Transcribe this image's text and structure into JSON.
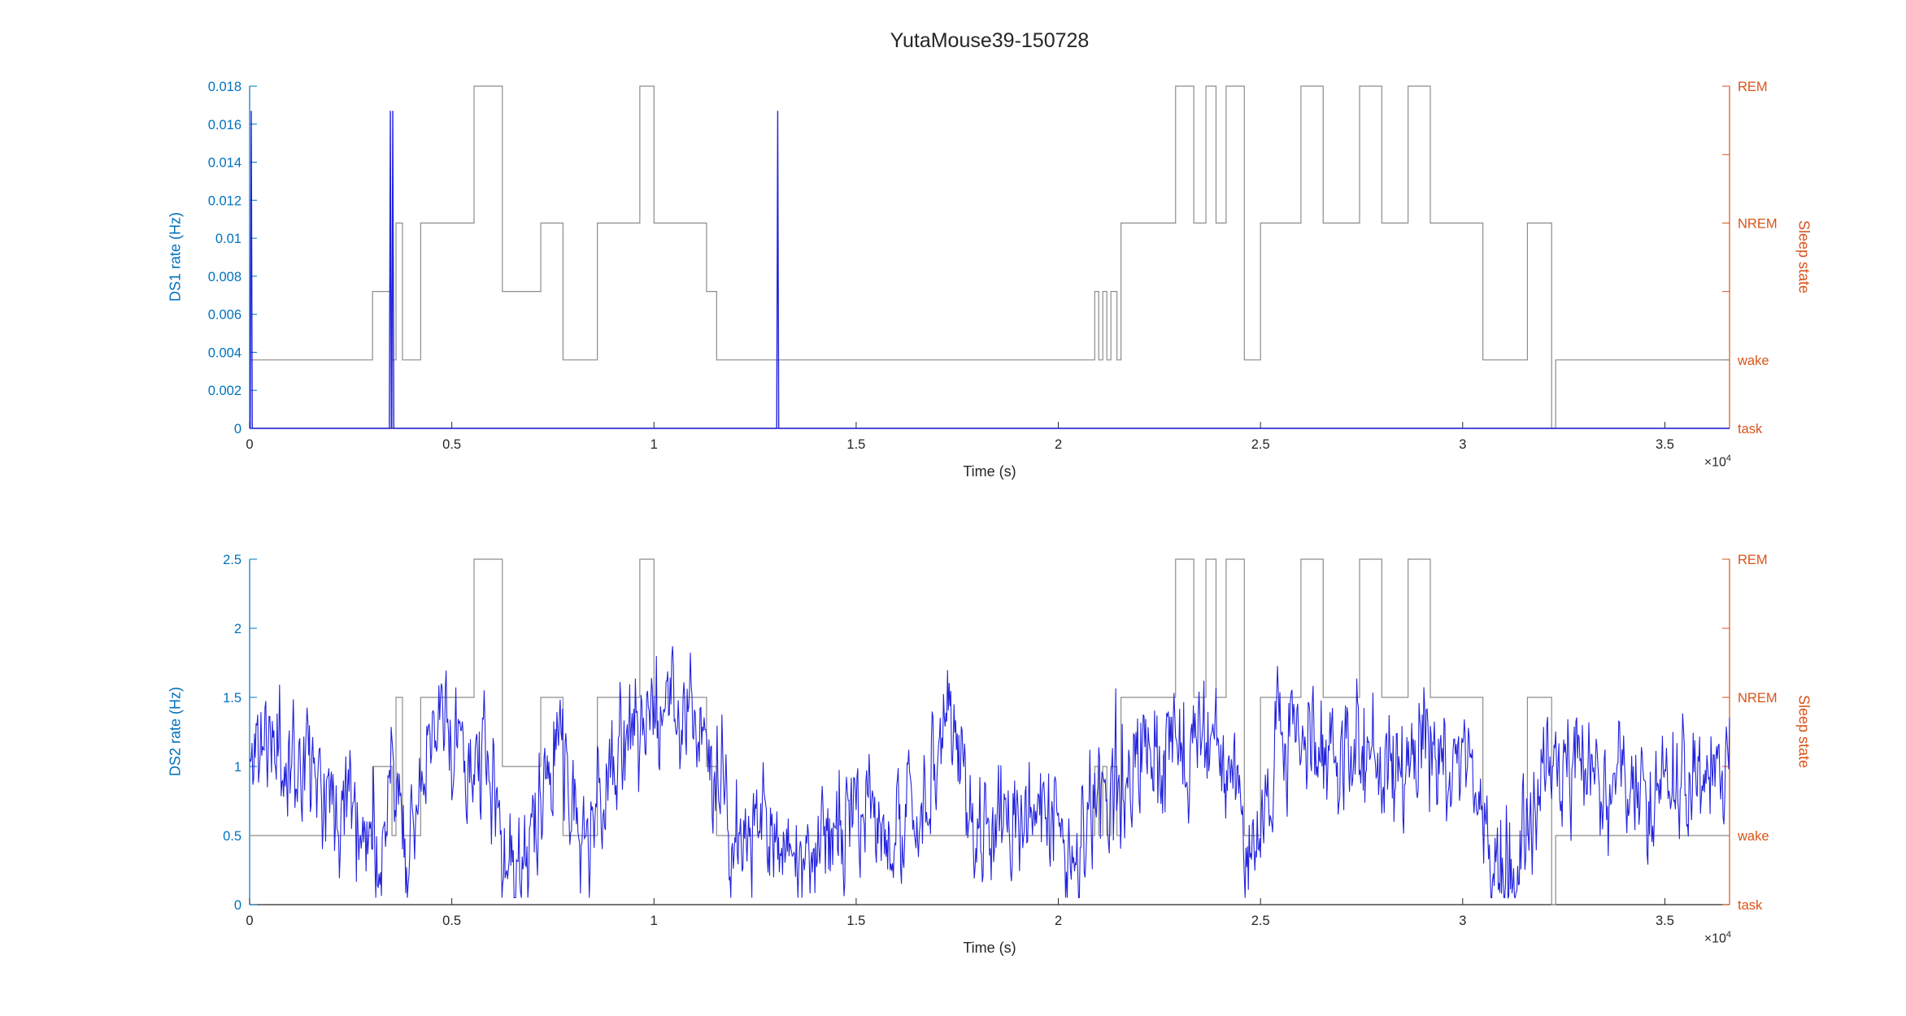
{
  "title": "YutaMouse39-150728",
  "top_plot": {
    "y_label": "DS1 rate (Hz)"
  },
  "bottom_plot": {
    "y_label": "DS2 rate (Hz)"
  },
  "x_axis": {
    "label": "Time (s)",
    "exponent_base": "×10",
    "exponent_power": "4"
  },
  "right_axis": {
    "label": "Sleep state"
  },
  "colors": {
    "left_axis": "#0072BD",
    "right_axis": "#D95319",
    "axis_dark": "#262626",
    "line_blue": "#2323dd",
    "sleep_gray": "#8c8c8c",
    "background": "#ffffff"
  },
  "sleep_state_levels": {
    "task": 0,
    "wake": 1,
    "NREM": 3,
    "REM": 5
  },
  "sleep_state_epochs": [
    [
      0,
      3040,
      1
    ],
    [
      3040,
      3520,
      2
    ],
    [
      3520,
      3620,
      1
    ],
    [
      3620,
      3780,
      3
    ],
    [
      3780,
      4230,
      1
    ],
    [
      4230,
      5550,
      3
    ],
    [
      5550,
      6250,
      5
    ],
    [
      6250,
      7200,
      2
    ],
    [
      7200,
      7750,
      3
    ],
    [
      7750,
      8600,
      1
    ],
    [
      8600,
      9650,
      3
    ],
    [
      9650,
      10000,
      5
    ],
    [
      10000,
      11300,
      3
    ],
    [
      11300,
      11550,
      2
    ],
    [
      11550,
      20900,
      1
    ],
    [
      20900,
      21000,
      2
    ],
    [
      21000,
      21100,
      1
    ],
    [
      21100,
      21200,
      2
    ],
    [
      21200,
      21300,
      1
    ],
    [
      21300,
      21450,
      2
    ],
    [
      21450,
      21550,
      1
    ],
    [
      21550,
      22900,
      3
    ],
    [
      22900,
      23350,
      5
    ],
    [
      23350,
      23650,
      3
    ],
    [
      23650,
      23900,
      5
    ],
    [
      23900,
      24150,
      3
    ],
    [
      24150,
      24600,
      5
    ],
    [
      24600,
      25000,
      1
    ],
    [
      25000,
      26000,
      3
    ],
    [
      26000,
      26550,
      5
    ],
    [
      26550,
      27450,
      3
    ],
    [
      27450,
      28000,
      5
    ],
    [
      28000,
      28650,
      3
    ],
    [
      28650,
      29200,
      5
    ],
    [
      29200,
      30500,
      3
    ],
    [
      30500,
      31600,
      1
    ],
    [
      31600,
      32200,
      3
    ],
    [
      32200,
      32300,
      0
    ],
    [
      32300,
      36600,
      1
    ]
  ],
  "chart_data": [
    {
      "type": "line",
      "title": "YutaMouse39-150728",
      "xlabel": "Time (s)",
      "ylabel": "DS1 rate (Hz)",
      "y2label": "Sleep state",
      "xlim": [
        0,
        36600
      ],
      "ylim": [
        0,
        0.018
      ],
      "x_scale_exponent": 4,
      "grid": false,
      "x_ticks": {
        "values": [
          0,
          5000,
          10000,
          15000,
          20000,
          25000,
          30000,
          35000
        ],
        "labels": [
          "0",
          "0.5",
          "1",
          "1.5",
          "2",
          "2.5",
          "3",
          "3.5"
        ]
      },
      "y_ticks": {
        "values": [
          0,
          0.002,
          0.004,
          0.006,
          0.008,
          0.01,
          0.012,
          0.014,
          0.016,
          0.018
        ],
        "labels": [
          "0",
          "0.002",
          "0.004",
          "0.006",
          "0.008",
          "0.01",
          "0.012",
          "0.014",
          "0.016",
          "0.018"
        ]
      },
      "y2_ticks": {
        "unit": 0.0036,
        "levels": [
          0,
          1,
          2,
          3,
          4,
          5
        ],
        "labels": {
          "0": "task",
          "1": "wake",
          "3": "NREM",
          "5": "REM"
        }
      },
      "series": [
        {
          "name": "Sleep state",
          "type": "step",
          "color_key": "sleep_gray",
          "level_unit": 0.0036,
          "epochs": "shared"
        },
        {
          "name": "DS1 rate",
          "type": "spikes",
          "color_key": "line_blue",
          "baseline": 0,
          "spike_times": [
            40,
            3480,
            3540,
            13060
          ],
          "spike_height": 0.0167,
          "spike_half_width_s": 25
        }
      ]
    },
    {
      "type": "line",
      "title": "",
      "xlabel": "Time (s)",
      "ylabel": "DS2 rate (Hz)",
      "y2label": "Sleep state",
      "xlim": [
        0,
        36600
      ],
      "ylim": [
        0,
        2.5
      ],
      "x_scale_exponent": 4,
      "grid": false,
      "x_ticks": {
        "values": [
          0,
          5000,
          10000,
          15000,
          20000,
          25000,
          30000,
          35000
        ],
        "labels": [
          "0",
          "0.5",
          "1",
          "1.5",
          "2",
          "2.5",
          "3",
          "3.5"
        ]
      },
      "y_ticks": {
        "values": [
          0,
          0.5,
          1,
          1.5,
          2,
          2.5
        ],
        "labels": [
          "0",
          "0.5",
          "1",
          "1.5",
          "2",
          "2.5"
        ]
      },
      "y2_ticks": {
        "unit": 0.5,
        "levels": [
          0,
          1,
          2,
          3,
          4,
          5
        ],
        "labels": {
          "0": "task",
          "1": "wake",
          "3": "NREM",
          "5": "REM"
        }
      },
      "series": [
        {
          "name": "Sleep state",
          "type": "step",
          "color_key": "sleep_gray",
          "level_unit": 0.5,
          "epochs": "shared"
        },
        {
          "name": "DS2 rate",
          "type": "noisy_line",
          "color_key": "line_blue",
          "sample_step_s": 20,
          "noise_std": 0.23,
          "seed": 11,
          "clamp": [
            0.05,
            2.2
          ],
          "envelope": [
            [
              0,
              1.0
            ],
            [
              300,
              1.25
            ],
            [
              700,
              1.05
            ],
            [
              1100,
              1.1
            ],
            [
              1600,
              1.0
            ],
            [
              2100,
              0.85
            ],
            [
              2600,
              0.75
            ],
            [
              3000,
              0.45
            ],
            [
              3300,
              0.3
            ],
            [
              3500,
              0.85
            ],
            [
              3700,
              0.7
            ],
            [
              3900,
              0.5
            ],
            [
              4200,
              0.75
            ],
            [
              4500,
              1.05
            ],
            [
              4800,
              1.45
            ],
            [
              5100,
              1.15
            ],
            [
              5400,
              1.0
            ],
            [
              5700,
              1.1
            ],
            [
              6000,
              0.8
            ],
            [
              6200,
              0.4
            ],
            [
              6500,
              0.3
            ],
            [
              6900,
              0.35
            ],
            [
              7200,
              0.6
            ],
            [
              7500,
              1.0
            ],
            [
              7700,
              1.45
            ],
            [
              7900,
              0.8
            ],
            [
              8200,
              0.5
            ],
            [
              8500,
              0.45
            ],
            [
              8800,
              0.9
            ],
            [
              9200,
              1.1
            ],
            [
              9600,
              1.35
            ],
            [
              9900,
              1.5
            ],
            [
              10300,
              1.3
            ],
            [
              10700,
              1.45
            ],
            [
              11000,
              1.5
            ],
            [
              11300,
              1.25
            ],
            [
              11600,
              0.7
            ],
            [
              12000,
              0.4
            ],
            [
              12400,
              0.5
            ],
            [
              12800,
              0.55
            ],
            [
              13200,
              0.5
            ],
            [
              13600,
              0.4
            ],
            [
              14000,
              0.45
            ],
            [
              14400,
              0.6
            ],
            [
              14800,
              0.55
            ],
            [
              15200,
              0.6
            ],
            [
              15600,
              0.5
            ],
            [
              16000,
              0.55
            ],
            [
              16400,
              0.6
            ],
            [
              16800,
              0.65
            ],
            [
              17100,
              1.0
            ],
            [
              17300,
              1.35
            ],
            [
              17600,
              1.1
            ],
            [
              18000,
              0.55
            ],
            [
              18400,
              0.5
            ],
            [
              18800,
              0.6
            ],
            [
              19200,
              0.55
            ],
            [
              19600,
              0.6
            ],
            [
              20000,
              0.55
            ],
            [
              20400,
              0.5
            ],
            [
              20800,
              0.65
            ],
            [
              21200,
              0.7
            ],
            [
              21600,
              0.9
            ],
            [
              22000,
              1.1
            ],
            [
              22400,
              1.0
            ],
            [
              22800,
              1.15
            ],
            [
              23200,
              1.0
            ],
            [
              23600,
              1.1
            ],
            [
              24000,
              1.05
            ],
            [
              24400,
              0.8
            ],
            [
              24600,
              0.45
            ],
            [
              24900,
              0.35
            ],
            [
              25200,
              0.8
            ],
            [
              25500,
              1.1
            ],
            [
              26000,
              1.35
            ],
            [
              26500,
              1.1
            ],
            [
              27000,
              0.95
            ],
            [
              27500,
              1.05
            ],
            [
              28000,
              1.15
            ],
            [
              28500,
              1.0
            ],
            [
              29000,
              1.1
            ],
            [
              29500,
              1.15
            ],
            [
              30000,
              1.0
            ],
            [
              30400,
              0.7
            ],
            [
              30800,
              0.35
            ],
            [
              31200,
              0.3
            ],
            [
              31600,
              0.55
            ],
            [
              32000,
              0.9
            ],
            [
              32400,
              1.15
            ],
            [
              32800,
              0.9
            ],
            [
              33200,
              1.0
            ],
            [
              33600,
              0.85
            ],
            [
              34000,
              1.0
            ],
            [
              34400,
              0.8
            ],
            [
              34800,
              0.95
            ],
            [
              35200,
              0.8
            ],
            [
              35600,
              0.9
            ],
            [
              36000,
              0.85
            ],
            [
              36600,
              1.0
            ]
          ]
        }
      ]
    }
  ]
}
